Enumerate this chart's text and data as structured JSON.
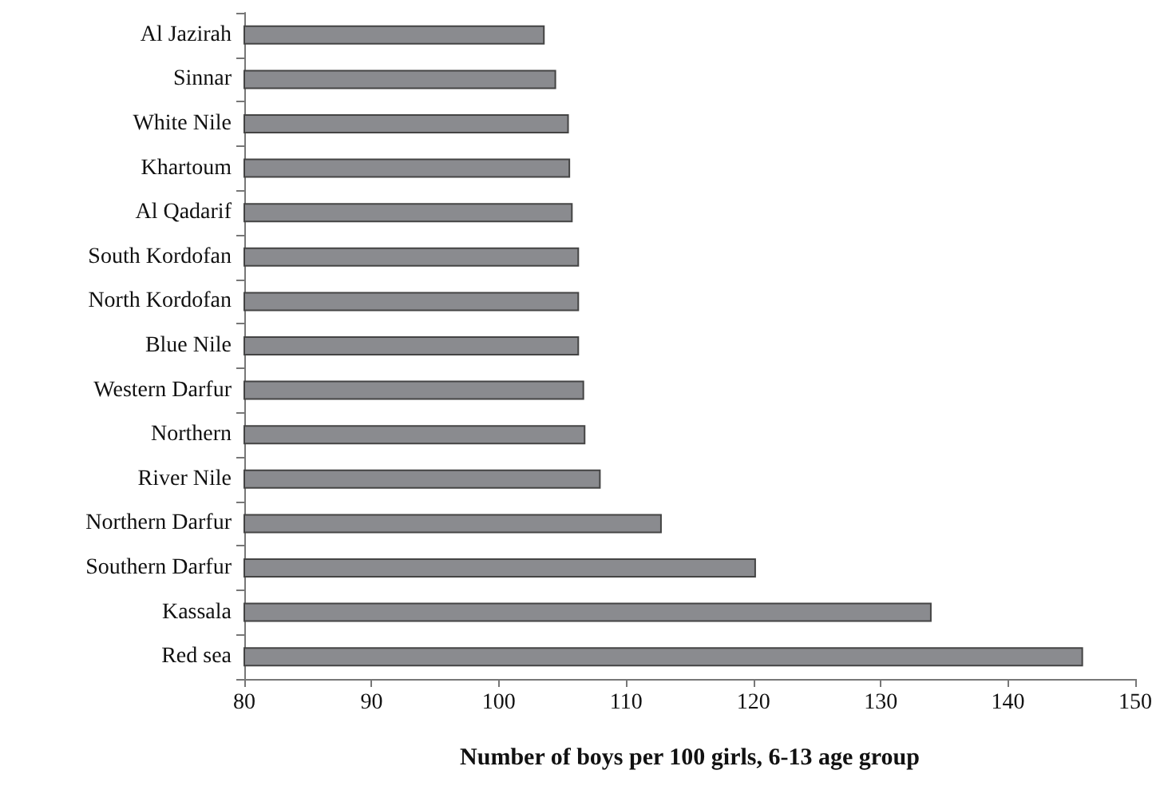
{
  "chart_data": {
    "type": "bar",
    "orientation": "horizontal",
    "xlabel": "Number of boys per 100 girls, 6-13 age group",
    "categories": [
      "Al Jazirah",
      "Sinnar",
      "White Nile",
      "Khartoum",
      "Al Qadarif",
      "South Kordofan",
      "North Kordofan",
      "Blue Nile",
      "Western Darfur",
      "Northern",
      "River Nile",
      "Northern Darfur",
      "Southern Darfur",
      "Kassala",
      "Red sea"
    ],
    "values": [
      103.6,
      104.5,
      105.5,
      105.6,
      105.8,
      106.3,
      106.3,
      106.3,
      106.7,
      106.8,
      108.0,
      112.8,
      120.2,
      134.0,
      145.9
    ],
    "color": "#8a8b8f",
    "xlim": [
      80,
      150
    ],
    "xticks": [
      80,
      90,
      100,
      110,
      120,
      130,
      140,
      150
    ],
    "grid": false
  }
}
